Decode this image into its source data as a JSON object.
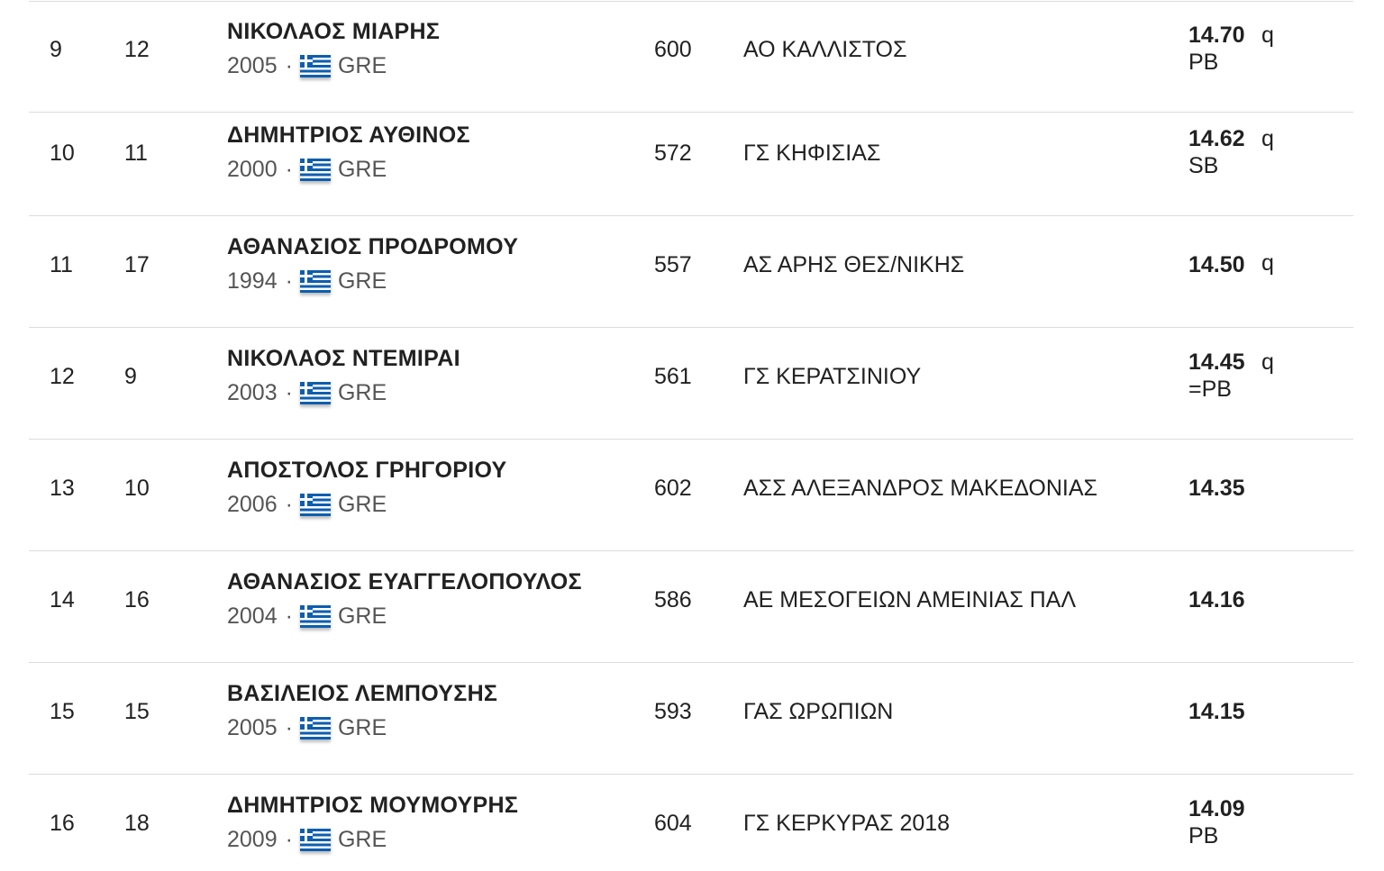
{
  "results": [
    {
      "rank": "9",
      "lane": "12",
      "name": "ΝΙΚΟΛΑΟΣ ΜΙΑΡΗΣ",
      "year": "2005",
      "country": "GRE",
      "flag_icon": "greece-flag-icon",
      "bib": "600",
      "club": "ΑΟ ΚΑΛΛΙΣΤΟΣ",
      "mark": "14.70",
      "qual": "q",
      "record": "PB"
    },
    {
      "rank": "10",
      "lane": "11",
      "name": "ΔΗΜΗΤΡΙΟΣ ΑΥΘΙΝΟΣ",
      "year": "2000",
      "country": "GRE",
      "flag_icon": "greece-flag-icon",
      "bib": "572",
      "club": "ΓΣ ΚΗΦΙΣΙΑΣ",
      "mark": "14.62",
      "qual": "q",
      "record": "SB"
    },
    {
      "rank": "11",
      "lane": "17",
      "name": "ΑΘΑΝΑΣΙΟΣ ΠΡΟΔΡΟΜΟΥ",
      "year": "1994",
      "country": "GRE",
      "flag_icon": "greece-flag-icon",
      "bib": "557",
      "club": "ΑΣ ΑΡΗΣ ΘΕΣ/ΝΙΚΗΣ",
      "mark": "14.50",
      "qual": "q",
      "record": ""
    },
    {
      "rank": "12",
      "lane": "9",
      "name": "ΝΙΚΟΛΑΟΣ ΝΤΕΜΙΡΑΙ",
      "year": "2003",
      "country": "GRE",
      "flag_icon": "greece-flag-icon",
      "bib": "561",
      "club": "ΓΣ ΚΕΡΑΤΣΙΝΙΟΥ",
      "mark": "14.45",
      "qual": "q",
      "record": "=PB"
    },
    {
      "rank": "13",
      "lane": "10",
      "name": "ΑΠΟΣΤΟΛΟΣ ΓΡΗΓΟΡΙΟΥ",
      "year": "2006",
      "country": "GRE",
      "flag_icon": "greece-flag-icon",
      "bib": "602",
      "club": "ΑΣΣ ΑΛΕΞΑΝΔΡΟΣ ΜΑΚΕΔΟΝΙΑΣ",
      "mark": "14.35",
      "qual": "",
      "record": ""
    },
    {
      "rank": "14",
      "lane": "16",
      "name": "ΑΘΑΝΑΣΙΟΣ ΕΥΑΓΓΕΛΟΠΟΥΛΟΣ",
      "year": "2004",
      "country": "GRE",
      "flag_icon": "greece-flag-icon",
      "bib": "586",
      "club": "ΑΕ ΜΕΣΟΓΕΙΩΝ ΑΜΕΙΝΙΑΣ ΠΑΛ",
      "mark": "14.16",
      "qual": "",
      "record": ""
    },
    {
      "rank": "15",
      "lane": "15",
      "name": "ΒΑΣΙΛΕΙΟΣ ΛΕΜΠΟΥΣΗΣ",
      "year": "2005",
      "country": "GRE",
      "flag_icon": "greece-flag-icon",
      "bib": "593",
      "club": "ΓΑΣ ΩΡΩΠΙΩΝ",
      "mark": "14.15",
      "qual": "",
      "record": ""
    },
    {
      "rank": "16",
      "lane": "18",
      "name": "ΔΗΜΗΤΡΙΟΣ ΜΟΥΜΟΥΡΗΣ",
      "year": "2009",
      "country": "GRE",
      "flag_icon": "greece-flag-icon",
      "bib": "604",
      "club": "ΓΣ ΚΕΡΚΥΡΑΣ 2018",
      "mark": "14.09",
      "qual": "",
      "record": "PB"
    }
  ],
  "separator": "·"
}
